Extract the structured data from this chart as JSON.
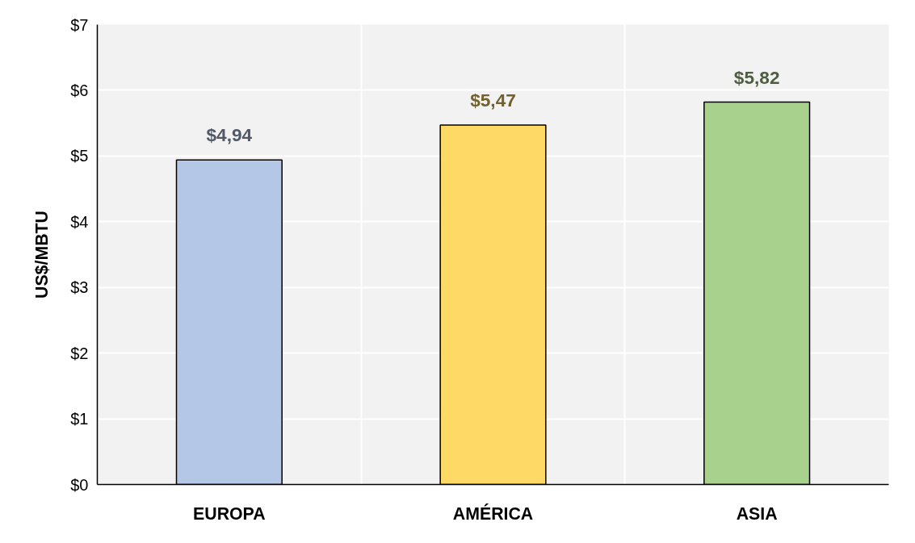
{
  "chart_data": {
    "type": "bar",
    "ylabel": "US$/MBTU",
    "categories": [
      "EUROPA",
      "AMÉRICA",
      "ASIA"
    ],
    "values": [
      4.94,
      5.47,
      5.82
    ],
    "colors": [
      "#b4c7e7",
      "#ffd966",
      "#a9d18e"
    ],
    "value_labels": [
      "$4,94",
      "$5,47",
      "$5,82"
    ],
    "ylim": [
      0,
      7
    ],
    "yticks": [
      {
        "value": 0,
        "label": "$0"
      },
      {
        "value": 1,
        "label": "$1"
      },
      {
        "value": 2,
        "label": "$2"
      },
      {
        "value": 3,
        "label": "$3"
      },
      {
        "value": 4,
        "label": "$4"
      },
      {
        "value": 5,
        "label": "$5"
      },
      {
        "value": 6,
        "label": "$6"
      },
      {
        "value": 7,
        "label": "$7"
      }
    ],
    "grid": true
  }
}
